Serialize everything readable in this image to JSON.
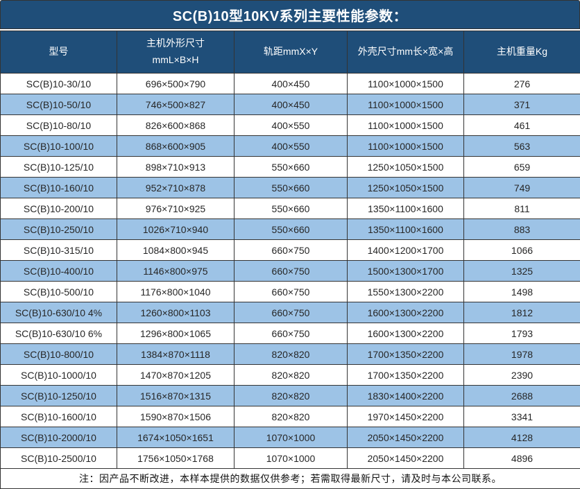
{
  "title": "SC(B)10型10KV系列主要性能参数：",
  "colors": {
    "header_bg": "#1F4E79",
    "row_alt_bg": "#9DC3E6",
    "row_bg": "#FFFFFF",
    "border": "#333333",
    "header_text": "#FFFFFF",
    "body_text": "#262626"
  },
  "table": {
    "columns": [
      {
        "label": "型号",
        "sublabel": ""
      },
      {
        "label": "主机外形尺寸",
        "sublabel": "mmL×B×H"
      },
      {
        "label": "轨距mmX×Y",
        "sublabel": ""
      },
      {
        "label": "外壳尺寸mm长×宽×高",
        "sublabel": ""
      },
      {
        "label": "主机重量Kg",
        "sublabel": ""
      }
    ],
    "rows": [
      [
        "SC(B)10-30/10",
        "696×500×790",
        "400×450",
        "1100×1000×1500",
        "276"
      ],
      [
        "SC(B)10-50/10",
        "746×500×827",
        "400×450",
        "1100×1000×1500",
        "371"
      ],
      [
        "SC(B)10-80/10",
        "826×600×868",
        "400×550",
        "1100×1000×1500",
        "461"
      ],
      [
        "SC(B)10-100/10",
        "868×600×905",
        "400×550",
        "1100×1000×1500",
        "563"
      ],
      [
        "SC(B)10-125/10",
        "898×710×913",
        "550×660",
        "1250×1050×1500",
        "659"
      ],
      [
        "SC(B)10-160/10",
        "952×710×878",
        "550×660",
        "1250×1050×1500",
        "749"
      ],
      [
        "SC(B)10-200/10",
        "976×710×925",
        "550×660",
        "1350×1100×1600",
        "811"
      ],
      [
        "SC(B)10-250/10",
        "1026×710×940",
        "550×660",
        "1350×1100×1600",
        "883"
      ],
      [
        "SC(B)10-315/10",
        "1084×800×945",
        "660×750",
        "1400×1200×1700",
        "1066"
      ],
      [
        "SC(B)10-400/10",
        "1146×800×975",
        "660×750",
        "1500×1300×1700",
        "1325"
      ],
      [
        "SC(B)10-500/10",
        "1176×800×1040",
        "660×750",
        "1550×1300×2200",
        "1498"
      ],
      [
        "SC(B)10-630/10 4%",
        "1260×800×1103",
        "660×750",
        "1600×1300×2200",
        "1812"
      ],
      [
        "SC(B)10-630/10 6%",
        "1296×800×1065",
        "660×750",
        "1600×1300×2200",
        "1793"
      ],
      [
        "SC(B)10-800/10",
        "1384×870×1118",
        "820×820",
        "1700×1350×2200",
        "1978"
      ],
      [
        "SC(B)10-1000/10",
        "1470×870×1205",
        "820×820",
        "1700×1350×2200",
        "2390"
      ],
      [
        "SC(B)10-1250/10",
        "1516×870×1315",
        "820×820",
        "1830×1400×2200",
        "2688"
      ],
      [
        "SC(B)10-1600/10",
        "1590×870×1506",
        "820×820",
        "1970×1450×2200",
        "3341"
      ],
      [
        "SC(B)10-2000/10",
        "1674×1050×1651",
        "1070×1000",
        "2050×1450×2200",
        "4128"
      ],
      [
        "SC(B)10-2500/10",
        "1756×1050×1768",
        "1070×1000",
        "2050×1450×2200",
        "4896"
      ]
    ]
  },
  "footer_note": "注：因产品不断改进，本样本提供的数据仅供参考；若需取得最新尺寸，请及时与本公司联系。"
}
